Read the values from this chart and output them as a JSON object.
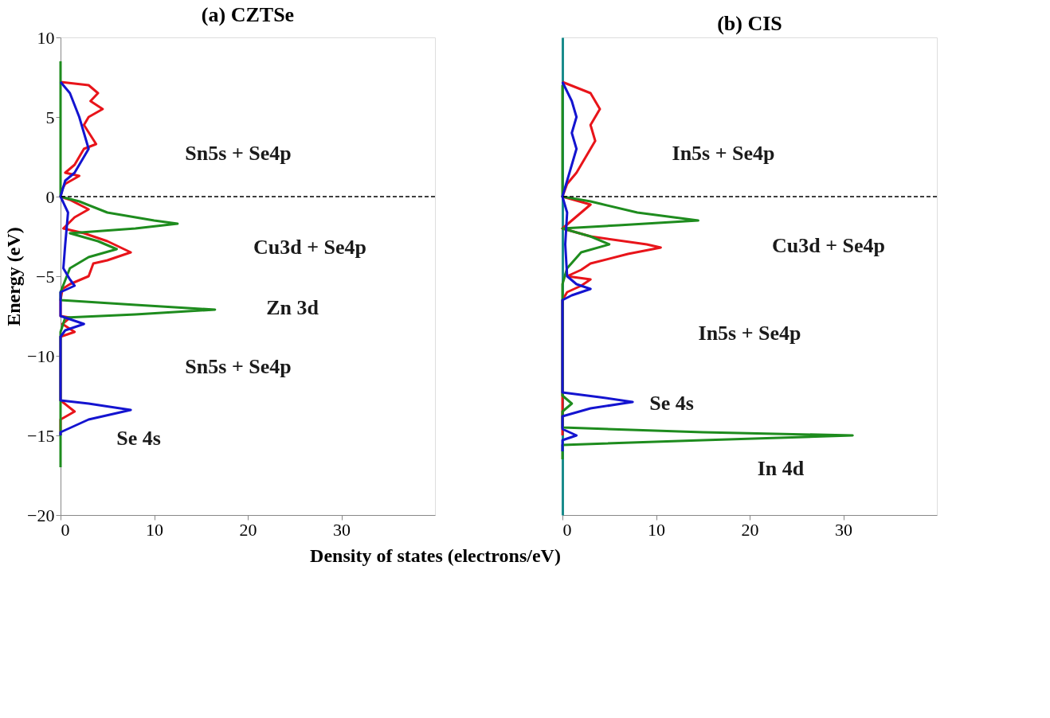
{
  "chart_data": [
    {
      "type": "line",
      "title": "(a) CZTSe",
      "xlabel": "Density of states (electrons/eV)",
      "ylabel": "Energy (eV)",
      "xlim": [
        0,
        40
      ],
      "xticks": [
        0,
        10,
        20,
        30
      ],
      "ylim": [
        -20,
        10
      ],
      "yticks": [
        -20,
        -15,
        -10,
        -5,
        0,
        5,
        10
      ],
      "grid": false,
      "marker": "none",
      "line_style": "solid",
      "series": [
        {
          "color": "#e8141a",
          "x": [
            0,
            3,
            4,
            3.2,
            4.5,
            3,
            2.5,
            3.8,
            2.5,
            1.5,
            0.5,
            2,
            0.5,
            0.2,
            0,
            1,
            3,
            1.5,
            0.3,
            2.5,
            5,
            7.5,
            5,
            3.5,
            3,
            1,
            0.2,
            0,
            0,
            1,
            0.2,
            1.5,
            0,
            0,
            1.5,
            0,
            0
          ],
          "values": [
            7.2,
            7,
            6.5,
            6,
            5.5,
            5,
            4.5,
            3.3,
            3,
            2,
            1.5,
            1.3,
            0.8,
            0.5,
            0,
            -0.2,
            -0.8,
            -1.3,
            -2,
            -2.3,
            -2.8,
            -3.5,
            -4,
            -4.2,
            -5,
            -5.5,
            -5.8,
            -6.5,
            -7.5,
            -7.6,
            -8,
            -8.5,
            -8.8,
            -12.8,
            -13.5,
            -14,
            -15
          ]
        },
        {
          "color": "#1e8c1e",
          "x": [
            0,
            0,
            2,
            5,
            10,
            12.5,
            8,
            1,
            4,
            6,
            3,
            1,
            0,
            0,
            8,
            16.5,
            8,
            0.5,
            0,
            0
          ],
          "values": [
            8.5,
            0,
            -0.3,
            -1,
            -1.5,
            -1.7,
            -2,
            -2.3,
            -2.8,
            -3.3,
            -3.8,
            -4.5,
            -6,
            -6.5,
            -6.8,
            -7.1,
            -7.4,
            -7.6,
            -8.5,
            -17
          ]
        },
        {
          "color": "#1414d0",
          "x": [
            0,
            1,
            2,
            2.5,
            3,
            2,
            1.5,
            0.5,
            0,
            0.8,
            0.5,
            0.3,
            1,
            1.5,
            0,
            0,
            1.5,
            2.5,
            0.5,
            0,
            0,
            3,
            7.5,
            3,
            0,
            0
          ],
          "values": [
            7.2,
            6.5,
            5,
            4,
            3,
            2,
            1.5,
            1,
            0,
            -1,
            -3,
            -4.5,
            -5.2,
            -5.6,
            -6,
            -7.5,
            -7.8,
            -8,
            -8.4,
            -8.8,
            -12.8,
            -13,
            -13.4,
            -14,
            -14.8,
            -15
          ]
        }
      ],
      "ref_lines": [
        {
          "axis": "y",
          "value": 0,
          "line_style": "dashed",
          "color": "#000000"
        }
      ],
      "annotations": [
        "Sn5s + Se4p",
        "Cu3d + Se4p",
        "Zn 3d",
        "Sn5s + Se4p",
        "Se 4s"
      ]
    },
    {
      "type": "line",
      "title": "(b) CIS",
      "xlim": [
        0,
        40
      ],
      "xticks": [
        0,
        10,
        20,
        30
      ],
      "ylim": [
        -20,
        10
      ],
      "tick_labels": "x",
      "grid": false,
      "marker": "none",
      "line_style": "solid",
      "series": [
        {
          "color": "#e8141a",
          "x": [
            0,
            3,
            4,
            3,
            3.5,
            2.5,
            1.5,
            0.5,
            0,
            3,
            1,
            0,
            3,
            9,
            10.5,
            7,
            3,
            2,
            0.5,
            3,
            2,
            0.5,
            0,
            0
          ],
          "values": [
            7.2,
            6.5,
            5.5,
            4.5,
            3.5,
            2.5,
            1.5,
            0.8,
            0,
            -0.5,
            -1.5,
            -2,
            -2.5,
            -3,
            -3.2,
            -3.6,
            -4.2,
            -4.6,
            -5,
            -5.2,
            -5.6,
            -6,
            -6.5,
            -15
          ]
        },
        {
          "color": "#1e8c1e",
          "x": [
            0,
            0,
            3,
            8,
            14.5,
            6,
            0,
            3,
            5,
            2,
            0.5,
            0,
            0,
            1,
            0,
            0,
            15,
            31,
            15,
            0,
            0
          ],
          "values": [
            7,
            0,
            -0.3,
            -1,
            -1.5,
            -1.8,
            -2,
            -2.5,
            -3,
            -3.5,
            -4.5,
            -5.5,
            -12.5,
            -13,
            -13.5,
            -14.5,
            -14.8,
            -15,
            -15.3,
            -15.6,
            -16.5
          ]
        },
        {
          "color": "#1414d0",
          "x": [
            0,
            1,
            1.5,
            1,
            1.5,
            1,
            0,
            0.5,
            0.3,
            0.5,
            1.5,
            3,
            1,
            0,
            0,
            4,
            7.5,
            3,
            0,
            0,
            1.5,
            0,
            0
          ],
          "values": [
            7.2,
            6,
            5,
            4,
            3,
            2,
            0,
            -1,
            -3,
            -5,
            -5.5,
            -5.8,
            -6.2,
            -6.5,
            -12.3,
            -12.6,
            -12.9,
            -13.3,
            -13.8,
            -14.6,
            -15,
            -15.3,
            -16
          ]
        }
      ],
      "ref_lines": [
        {
          "axis": "y",
          "value": 0,
          "line_style": "dashed",
          "color": "#000000"
        }
      ],
      "annotations": [
        "In5s + Se4p",
        "Cu3d + Se4p",
        "In5s + Se4p",
        "Se 4s",
        "In 4d"
      ]
    }
  ]
}
